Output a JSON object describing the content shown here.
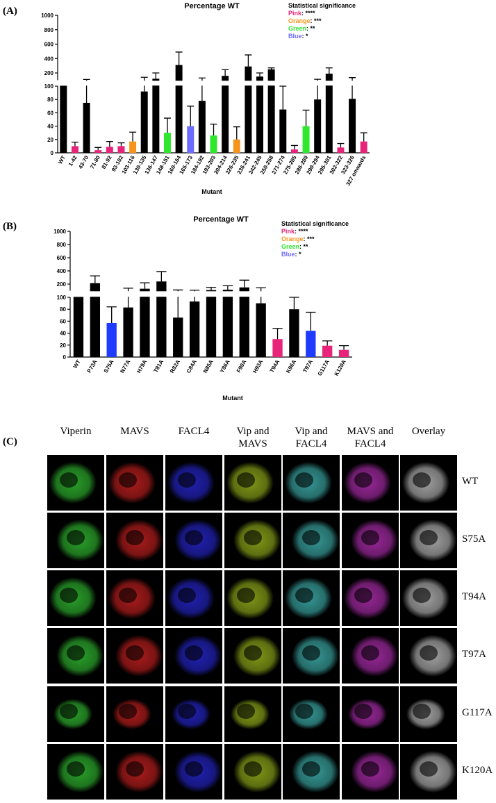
{
  "chart_data": [
    {
      "type": "bar",
      "panel": "(A)",
      "title": "Percentage WT",
      "x_label": "Mutant",
      "legend_title": "Statistical significance",
      "legend": [
        {
          "name": "Pink",
          "color": "#e8237a",
          "text": ": ****"
        },
        {
          "name": "Orange",
          "color": "#f7941d",
          "text": ": ***"
        },
        {
          "name": "Green",
          "color": "#2ee82e",
          "text": ": **"
        },
        {
          "name": "Blue",
          "color": "#6b6bff",
          "text": ": *"
        }
      ],
      "categories": [
        "WT",
        "1-42",
        "43-70",
        "71-80",
        "81-92",
        "93-102",
        "103-116",
        "130-135",
        "136-147",
        "148-151",
        "160-164",
        "165-173",
        "184-192",
        "193-203",
        "204-214",
        "226-235",
        "236-241",
        "242-245",
        "250-258",
        "271-274",
        "275-285",
        "286-289",
        "290-294",
        "295-301",
        "302-322",
        "323-326",
        "327 onwards"
      ],
      "values": [
        100,
        10,
        75,
        4,
        9,
        10,
        17,
        92,
        120,
        30,
        310,
        40,
        78,
        26,
        160,
        20,
        290,
        150,
        250,
        65,
        5,
        40,
        80,
        190,
        8,
        81,
        17
      ],
      "errors": [
        0,
        6,
        35,
        4,
        8,
        5,
        14,
        48,
        80,
        22,
        180,
        30,
        52,
        17,
        85,
        19,
        160,
        50,
        20,
        35,
        6,
        24,
        32,
        80,
        6,
        55,
        13
      ],
      "colors": [
        "#000000",
        "#e8237a",
        "#000000",
        "#e8237a",
        "#e8237a",
        "#e8237a",
        "#f7941d",
        "#000000",
        "#000000",
        "#2ee82e",
        "#000000",
        "#6b6bff",
        "#000000",
        "#2ee82e",
        "#000000",
        "#f7941d",
        "#000000",
        "#000000",
        "#000000",
        "#000000",
        "#e8237a",
        "#2ee82e",
        "#000000",
        "#000000",
        "#e8237a",
        "#000000",
        "#e8237a"
      ],
      "axis_segments": [
        {
          "ylim": [
            0,
            100
          ],
          "yticks": [
            0,
            20,
            40,
            60,
            80,
            100
          ]
        },
        {
          "ylim": [
            100,
            1000
          ],
          "yticks": [
            200,
            400,
            600,
            800,
            1000
          ]
        }
      ]
    },
    {
      "type": "bar",
      "panel": "(B)",
      "title": "Percentage WT",
      "x_label": "Mutant",
      "legend_title": "Statistical significance",
      "legend": [
        {
          "name": "Pink",
          "color": "#e8237a",
          "text": ": ****"
        },
        {
          "name": "Orange",
          "color": "#f7941d",
          "text": ": ***"
        },
        {
          "name": "Green",
          "color": "#2ee82e",
          "text": ": **"
        },
        {
          "name": "Blue",
          "color": "#6b6bff",
          "text": ": *"
        }
      ],
      "categories": [
        "WT",
        "P73A",
        "S75A",
        "N77A",
        "H79A",
        "T81A",
        "R82A",
        "C84A",
        "N85A",
        "Y86A",
        "F90A",
        "H93A",
        "T94A",
        "K96A",
        "T97A",
        "G117A",
        "K120A"
      ],
      "values": [
        100,
        215,
        57,
        83,
        130,
        240,
        66,
        93,
        110,
        115,
        150,
        90,
        30,
        80,
        44,
        19,
        12
      ],
      "errors": [
        0,
        110,
        27,
        55,
        90,
        150,
        45,
        15,
        40,
        60,
        110,
        55,
        18,
        20,
        31,
        8,
        7
      ],
      "colors": [
        "#000000",
        "#000000",
        "#1f3bff",
        "#000000",
        "#000000",
        "#000000",
        "#000000",
        "#000000",
        "#000000",
        "#000000",
        "#000000",
        "#000000",
        "#e8237a",
        "#000000",
        "#1f3bff",
        "#e8237a",
        "#e8237a"
      ],
      "axis_segments": [
        {
          "ylim": [
            0,
            100
          ],
          "yticks": [
            0,
            20,
            40,
            60,
            80,
            100
          ]
        },
        {
          "ylim": [
            100,
            1000
          ],
          "yticks": [
            200,
            400,
            600,
            800,
            1000
          ]
        }
      ]
    }
  ],
  "figure_c": {
    "panel": "(C)",
    "columns": [
      "Viperin",
      "MAVS",
      "FACL4",
      "Vip and MAVS",
      "Vip and FACL4",
      "MAVS and FACL4",
      "Overlay"
    ],
    "rows": [
      "WT",
      "S75A",
      "T94A",
      "T97A",
      "G117A",
      "K120A"
    ]
  }
}
